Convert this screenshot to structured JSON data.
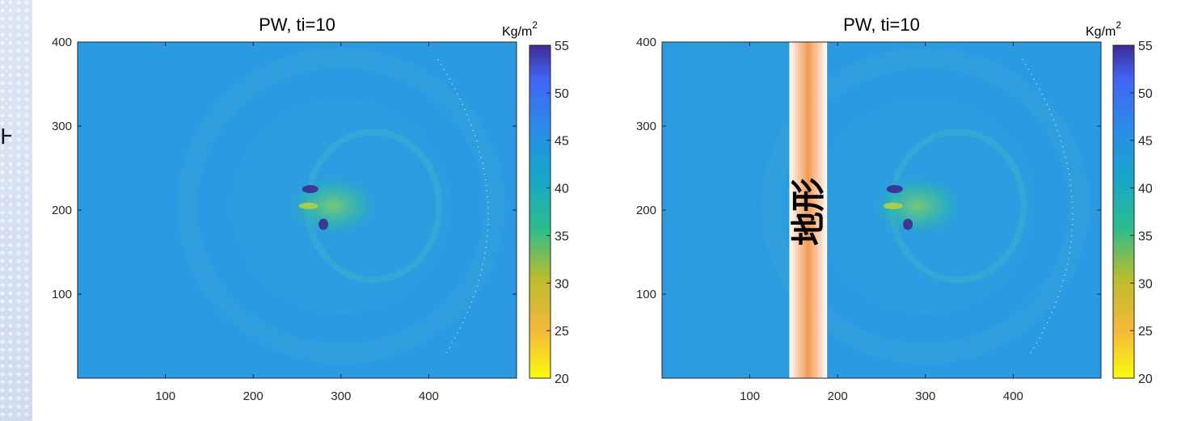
{
  "figure": {
    "edge_glyph": "H"
  },
  "chart_data": [
    {
      "type": "heatmap",
      "title": "PW, ti=10",
      "x_ticks": [
        100,
        200,
        300,
        400
      ],
      "y_ticks": [
        100,
        200,
        300,
        400
      ],
      "xlim": [
        0,
        500
      ],
      "ylim": [
        0,
        400
      ],
      "colorbar": {
        "unit": "Kg/m",
        "unit_superscript": "2",
        "range": [
          20,
          55
        ],
        "ticks": [
          20,
          25,
          30,
          35,
          40,
          45,
          50,
          55
        ],
        "colors": [
          "#f9fb0e",
          "#f5b93a",
          "#bbbc2c",
          "#2bbd8e",
          "#16a7c9",
          "#2b8ce8",
          "#4264f5",
          "#3d2a92"
        ]
      },
      "background_value": 41,
      "annotation": null
    },
    {
      "type": "heatmap",
      "title": "PW, ti=10",
      "x_ticks": [
        100,
        200,
        300,
        400
      ],
      "y_ticks": [
        100,
        200,
        300,
        400
      ],
      "xlim": [
        0,
        500
      ],
      "ylim": [
        0,
        400
      ],
      "colorbar": {
        "unit": "Kg/m",
        "unit_superscript": "2",
        "range": [
          20,
          55
        ],
        "ticks": [
          20,
          25,
          30,
          35,
          40,
          45,
          50,
          55
        ],
        "colors": [
          "#f9fb0e",
          "#f5b93a",
          "#bbbc2c",
          "#2bbd8e",
          "#16a7c9",
          "#2b8ce8",
          "#4264f5",
          "#3d2a92"
        ]
      },
      "background_value": 41,
      "annotation": "地形",
      "terrain_band_x": [
        145,
        188
      ]
    }
  ]
}
